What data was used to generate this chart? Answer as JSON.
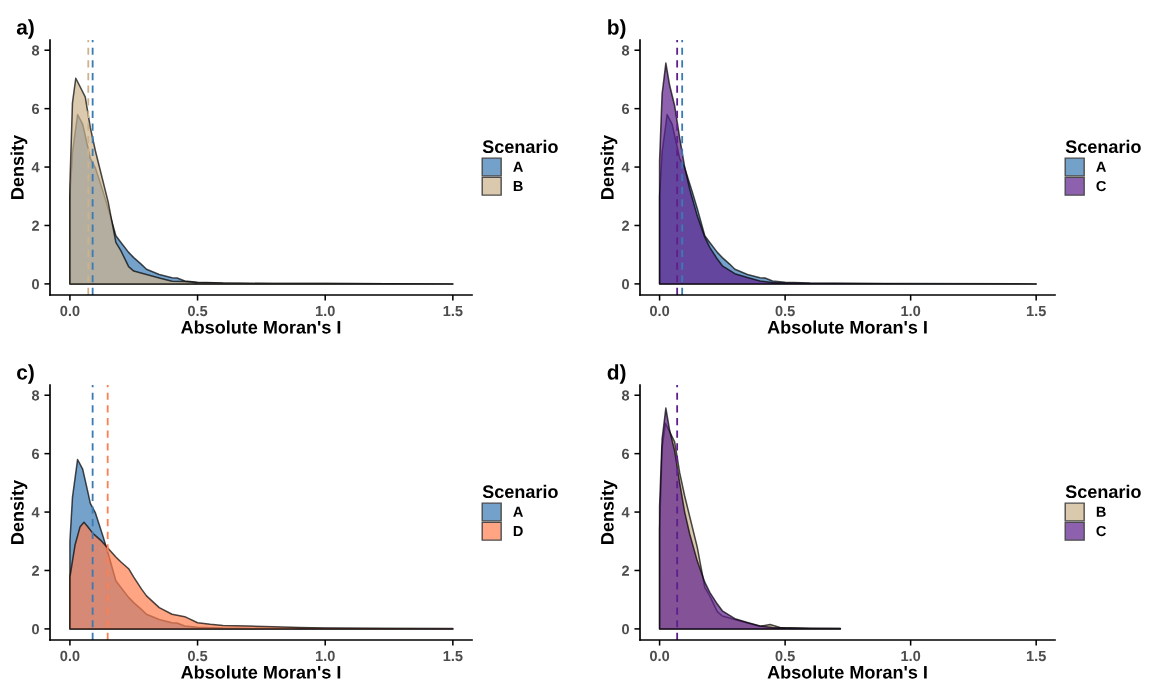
{
  "chart_data": [
    {
      "type": "area",
      "title": "a)",
      "xlabel": "Absolute Moran's I",
      "ylabel": "Density",
      "legend_title": "Scenario",
      "legend": "right",
      "xlim": [
        -0.078,
        1.575
      ],
      "ylim": [
        -0.38,
        8.35
      ],
      "xticks": [
        {
          "value": 0,
          "label": "0.0"
        },
        {
          "value": 0.5,
          "label": "0.5"
        },
        {
          "value": 1,
          "label": "1.0"
        },
        {
          "value": 1.5,
          "label": "1.5"
        }
      ],
      "yticks": [
        0,
        2,
        4,
        6,
        8
      ],
      "series": [
        {
          "name": "A",
          "color": "#3a7ab5",
          "x": [
            0,
            0.01,
            0.03,
            0.05,
            0.07,
            0.08,
            0.1,
            0.13,
            0.15,
            0.18,
            0.2,
            0.23,
            0.25,
            0.28,
            0.3,
            0.35,
            0.4,
            0.42,
            0.45,
            0.5,
            0.6,
            0.8,
            1.0,
            1.5
          ],
          "values": [
            3.0,
            4.5,
            5.8,
            5.47,
            4.7,
            4.3,
            3.97,
            3.16,
            2.58,
            1.65,
            1.42,
            1.08,
            0.9,
            0.67,
            0.5,
            0.32,
            0.21,
            0.2,
            0.1,
            0.06,
            0.03,
            0.01,
            0.01,
            0
          ]
        },
        {
          "name": "B",
          "color": "#cdb38b",
          "x": [
            0,
            0.01,
            0.023,
            0.04,
            0.06,
            0.08,
            0.1,
            0.12,
            0.15,
            0.18,
            0.2,
            0.23,
            0.25,
            0.3,
            0.35,
            0.4,
            0.45,
            0.5,
            0.6,
            0.8,
            1.0,
            1.5
          ],
          "values": [
            3.4,
            6.2,
            7.04,
            6.75,
            6.4,
            5.35,
            4.55,
            3.85,
            2.8,
            1.42,
            1.13,
            0.59,
            0.44,
            0.32,
            0.2,
            0.09,
            0.08,
            0.04,
            0.02,
            0.01,
            0.01,
            0
          ]
        }
      ],
      "ref_lines": [
        {
          "axis": "x",
          "value": 0.089,
          "color": "#3a7ab5",
          "line_style": "dashed"
        },
        {
          "axis": "x",
          "value": 0.072,
          "color": "#cdb38b",
          "line_style": "dashed"
        }
      ]
    },
    {
      "type": "area",
      "title": "b)",
      "xlabel": "Absolute Moran's I",
      "ylabel": "Density",
      "legend_title": "Scenario",
      "legend": "right",
      "xlim": [
        -0.078,
        1.575
      ],
      "ylim": [
        -0.38,
        8.35
      ],
      "xticks": [
        {
          "value": 0,
          "label": "0.0"
        },
        {
          "value": 0.5,
          "label": "0.5"
        },
        {
          "value": 1,
          "label": "1.0"
        },
        {
          "value": 1.5,
          "label": "1.5"
        }
      ],
      "yticks": [
        0,
        2,
        4,
        6,
        8
      ],
      "series": [
        {
          "name": "A",
          "color": "#3a7ab5",
          "x": [
            0,
            0.01,
            0.03,
            0.05,
            0.07,
            0.08,
            0.1,
            0.13,
            0.15,
            0.18,
            0.2,
            0.23,
            0.25,
            0.28,
            0.3,
            0.35,
            0.4,
            0.42,
            0.45,
            0.5,
            0.6,
            0.8,
            1.0,
            1.5
          ],
          "values": [
            3.0,
            4.5,
            5.8,
            5.47,
            4.7,
            4.3,
            3.97,
            3.16,
            2.58,
            1.65,
            1.42,
            1.08,
            0.9,
            0.67,
            0.5,
            0.32,
            0.21,
            0.2,
            0.1,
            0.06,
            0.03,
            0.01,
            0.01,
            0
          ]
        },
        {
          "name": "C",
          "color": "#5e1f8c",
          "x": [
            0,
            0.01,
            0.025,
            0.04,
            0.06,
            0.08,
            0.1,
            0.12,
            0.15,
            0.18,
            0.2,
            0.23,
            0.25,
            0.3,
            0.35,
            0.4,
            0.45,
            0.5,
            0.6,
            0.8,
            1.0,
            1.5
          ],
          "values": [
            4.2,
            6.5,
            7.56,
            6.8,
            6.1,
            5.0,
            4.0,
            3.25,
            2.33,
            1.6,
            1.25,
            0.85,
            0.62,
            0.35,
            0.22,
            0.1,
            0.05,
            0.03,
            0.01,
            0.01,
            0,
            0
          ]
        }
      ],
      "ref_lines": [
        {
          "axis": "x",
          "value": 0.09,
          "color": "#3a7ab5",
          "line_style": "dashed"
        },
        {
          "axis": "x",
          "value": 0.07,
          "color": "#5e1f8c",
          "line_style": "dashed"
        }
      ]
    },
    {
      "type": "area",
      "title": "c)",
      "xlabel": "Absolute Moran's I",
      "ylabel": "Density",
      "legend_title": "Scenario",
      "legend": "right",
      "xlim": [
        -0.078,
        1.575
      ],
      "ylim": [
        -0.38,
        8.35
      ],
      "xticks": [
        {
          "value": 0,
          "label": "0.0"
        },
        {
          "value": 0.5,
          "label": "0.5"
        },
        {
          "value": 1,
          "label": "1.0"
        },
        {
          "value": 1.5,
          "label": "1.5"
        }
      ],
      "yticks": [
        0,
        2,
        4,
        6,
        8
      ],
      "series": [
        {
          "name": "A",
          "color": "#3a7ab5",
          "x": [
            0,
            0.01,
            0.03,
            0.05,
            0.07,
            0.08,
            0.1,
            0.13,
            0.15,
            0.18,
            0.2,
            0.23,
            0.25,
            0.28,
            0.3,
            0.35,
            0.4,
            0.42,
            0.45,
            0.5,
            0.6,
            0.8,
            1.0,
            1.5
          ],
          "values": [
            3.0,
            4.5,
            5.8,
            5.47,
            4.7,
            4.3,
            3.97,
            3.16,
            2.58,
            1.65,
            1.42,
            1.08,
            0.9,
            0.67,
            0.5,
            0.32,
            0.21,
            0.2,
            0.1,
            0.06,
            0.03,
            0.01,
            0.01,
            0
          ]
        },
        {
          "name": "D",
          "color": "#ff7f50",
          "x": [
            0,
            0.02,
            0.04,
            0.055,
            0.07,
            0.09,
            0.12,
            0.15,
            0.18,
            0.2,
            0.23,
            0.25,
            0.28,
            0.3,
            0.35,
            0.4,
            0.45,
            0.5,
            0.55,
            0.6,
            0.7,
            0.8,
            0.9,
            1.0,
            1.2,
            1.5
          ],
          "values": [
            1.77,
            2.87,
            3.5,
            3.65,
            3.5,
            3.27,
            3.04,
            2.75,
            2.46,
            2.29,
            2.06,
            1.77,
            1.37,
            1.13,
            0.73,
            0.5,
            0.42,
            0.21,
            0.16,
            0.12,
            0.1,
            0.07,
            0.05,
            0.03,
            0.02,
            0.01
          ]
        }
      ],
      "ref_lines": [
        {
          "axis": "x",
          "value": 0.089,
          "color": "#3a7ab5",
          "line_style": "dashed"
        },
        {
          "axis": "x",
          "value": 0.148,
          "color": "#ff7f50",
          "line_style": "dashed"
        }
      ]
    },
    {
      "type": "area",
      "title": "d)",
      "xlabel": "Absolute Moran's I",
      "ylabel": "Density",
      "legend_title": "Scenario",
      "legend": "right",
      "xlim": [
        -0.078,
        1.575
      ],
      "ylim": [
        -0.38,
        8.35
      ],
      "xticks": [
        {
          "value": 0,
          "label": "0.0"
        },
        {
          "value": 0.5,
          "label": "0.5"
        },
        {
          "value": 1,
          "label": "1.0"
        },
        {
          "value": 1.5,
          "label": "1.5"
        }
      ],
      "yticks": [
        0,
        2,
        4,
        6,
        8
      ],
      "series": [
        {
          "name": "B",
          "color": "#cdb38b",
          "x": [
            0,
            0.01,
            0.023,
            0.04,
            0.06,
            0.08,
            0.1,
            0.12,
            0.15,
            0.18,
            0.2,
            0.23,
            0.25,
            0.3,
            0.35,
            0.4,
            0.44,
            0.48,
            0.6,
            0.72
          ],
          "values": [
            3.4,
            6.2,
            7.04,
            6.75,
            6.4,
            5.35,
            4.55,
            3.85,
            2.8,
            1.42,
            1.13,
            0.59,
            0.44,
            0.32,
            0.2,
            0.09,
            0.15,
            0.05,
            0.02,
            0.01
          ]
        },
        {
          "name": "C",
          "color": "#5e1f8c",
          "x": [
            0,
            0.01,
            0.025,
            0.04,
            0.06,
            0.08,
            0.1,
            0.12,
            0.15,
            0.18,
            0.2,
            0.23,
            0.25,
            0.3,
            0.35,
            0.4,
            0.45,
            0.5,
            0.6,
            0.72
          ],
          "values": [
            4.2,
            6.5,
            7.56,
            6.8,
            6.1,
            5.0,
            4.0,
            3.25,
            2.33,
            1.6,
            1.25,
            0.85,
            0.62,
            0.35,
            0.22,
            0.1,
            0.05,
            0.03,
            0.01,
            0.01
          ]
        }
      ],
      "ref_lines": [
        {
          "axis": "x",
          "value": 0.07,
          "color": "#5e1f8c",
          "line_style": "dashed"
        }
      ]
    }
  ]
}
